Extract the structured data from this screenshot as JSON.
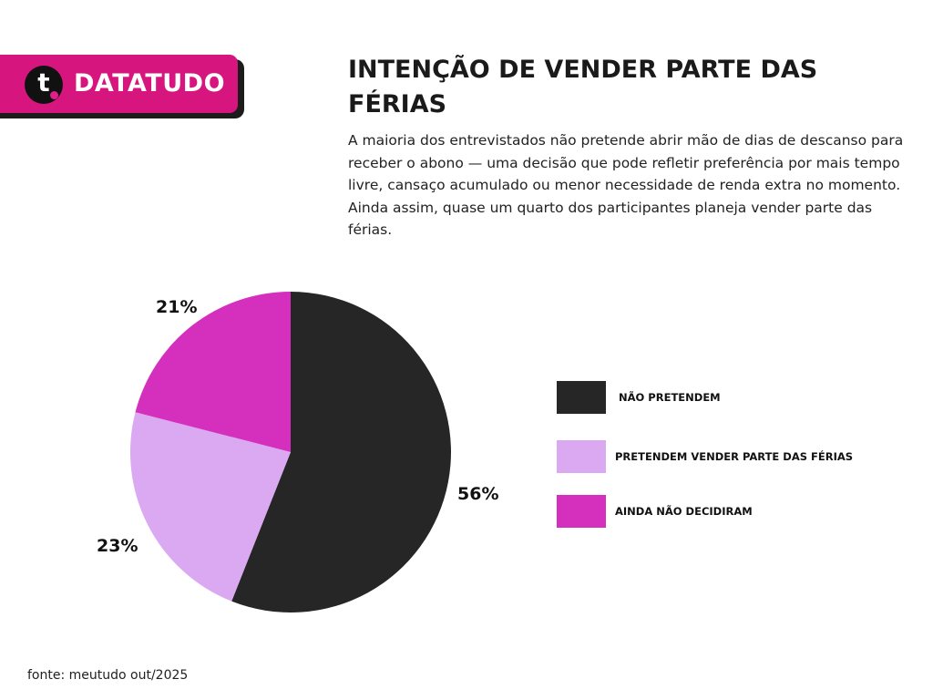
{
  "brand": {
    "logo_letter": "t",
    "name": "DATATUDO",
    "color": "#d6157f"
  },
  "title": "INTENÇÃO DE VENDER PARTE DAS FÉRIAS",
  "subtitle": "A maioria dos entrevistados não pretende abrir mão de dias de descanso para receber o abono — uma decisão que pode refletir preferência por mais tempo livre, cansaço acumulado ou menor necessidade de renda extra no momento. Ainda assim, quase um quarto dos participantes planeja vender parte das férias.",
  "chart_data": {
    "type": "pie",
    "categories": [
      "NÃO PRETENDEM",
      "PRETENDEM VENDER PARTE DAS FÉRIAS",
      "AINDA NÃO DECIDIRAM"
    ],
    "values": [
      56,
      23,
      21
    ],
    "labels": [
      "56%",
      "23%",
      "21%"
    ],
    "colors": [
      "#262626",
      "#dba8f2",
      "#d42fbd"
    ],
    "legend_position": "right"
  },
  "source": "fonte: meutudo out/2025"
}
